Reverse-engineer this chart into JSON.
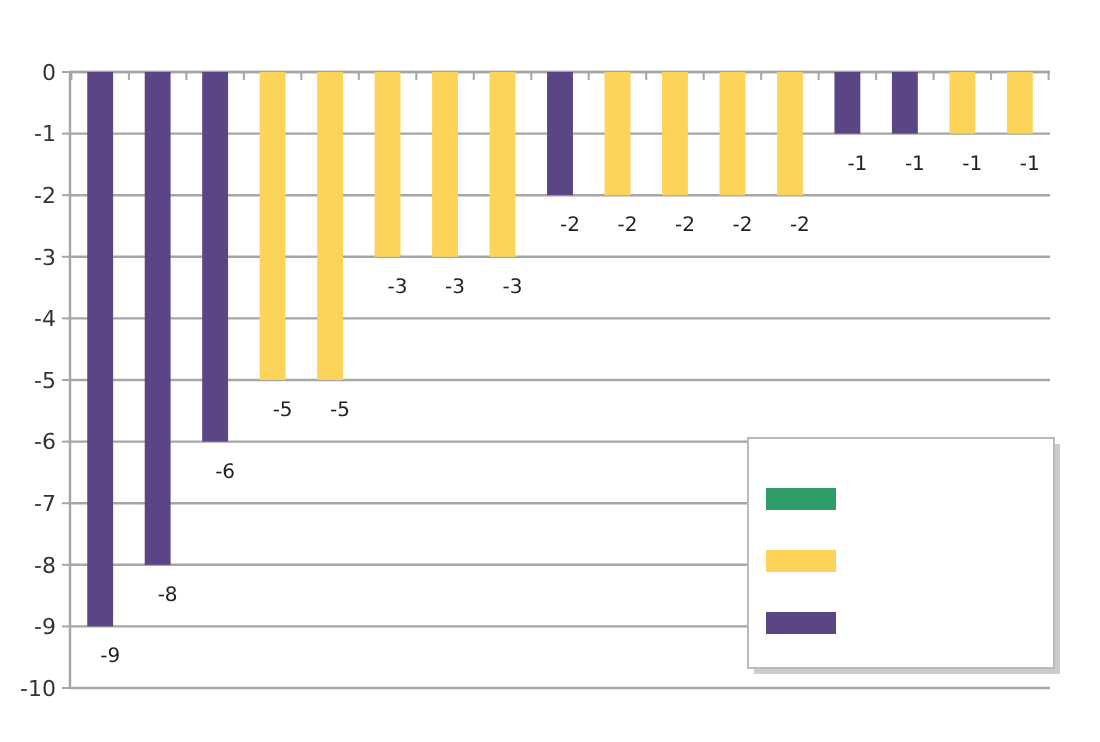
{
  "chart_data": {
    "type": "bar",
    "categories": [
      null,
      null,
      null,
      null,
      null,
      null,
      null,
      null,
      null,
      null,
      null,
      null,
      null,
      null,
      null,
      null,
      null
    ],
    "series": [
      {
        "color": "#2e9e68",
        "values": [
          null,
          null,
          null,
          null,
          null,
          null,
          null,
          null,
          null,
          null,
          null,
          null,
          null,
          null,
          null,
          null,
          null
        ]
      },
      {
        "color": "#fcd45a",
        "values": [
          null,
          null,
          null,
          -5,
          -5,
          -3,
          -3,
          -3,
          null,
          -2,
          -2,
          -2,
          -2,
          null,
          null,
          -1,
          -1
        ]
      },
      {
        "color": "#5b4584",
        "values": [
          -9,
          -8,
          -6,
          null,
          null,
          null,
          null,
          null,
          -2,
          null,
          null,
          null,
          null,
          -1,
          -1,
          null,
          null
        ]
      }
    ],
    "ylim": [
      -10,
      0
    ],
    "yticks": [
      -10,
      -9,
      -8,
      -7,
      -6,
      -5,
      -4,
      -3,
      -2,
      -1,
      0
    ],
    "grid": "y",
    "data_labels": true
  }
}
